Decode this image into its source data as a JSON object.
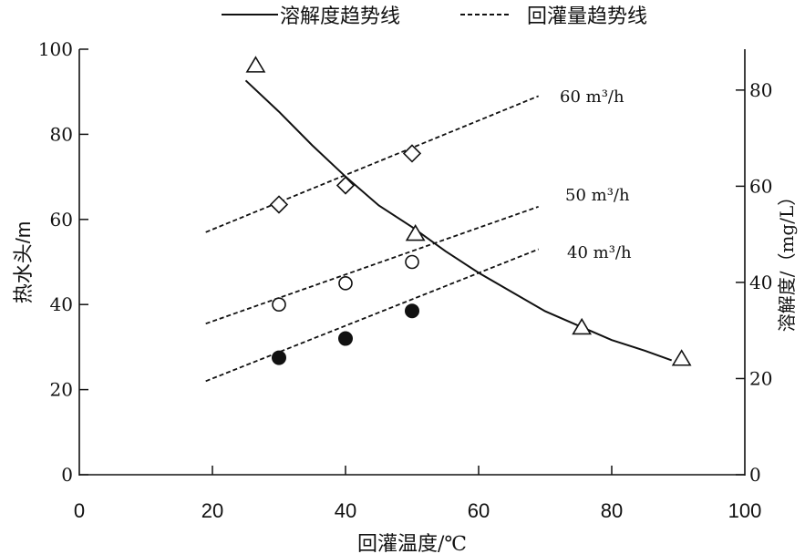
{
  "chart_data": {
    "type": "scatter",
    "title": "",
    "legend": {
      "placement": "top-center",
      "items": [
        {
          "label": "溶解度趋势线",
          "style": "solid"
        },
        {
          "label": "回灌量趋势线",
          "style": "dashed"
        }
      ]
    },
    "x_axis": {
      "label": "回灌温度/℃",
      "range": [
        0,
        100
      ],
      "ticks": [
        0,
        20,
        40,
        60,
        80,
        100
      ]
    },
    "y_left": {
      "label": "热水头/m",
      "range": [
        0,
        100
      ],
      "ticks": [
        0,
        20,
        40,
        60,
        80,
        100
      ]
    },
    "y_right": {
      "label": "溶解度/（mg/L）",
      "range": [
        0,
        88.5
      ],
      "ticks": [
        0,
        20,
        40,
        60,
        80
      ]
    },
    "grid": false,
    "series": [
      {
        "name": "60 m³/h",
        "axis": "left",
        "marker": "diamond",
        "points": [
          [
            30,
            63.5
          ],
          [
            40,
            68
          ],
          [
            50,
            75.5
          ]
        ],
        "trend": {
          "style": "dashed",
          "from": [
            19,
            57
          ],
          "to": [
            69,
            89
          ]
        }
      },
      {
        "name": "50 m³/h",
        "axis": "left",
        "marker": "circle-open",
        "points": [
          [
            30,
            40
          ],
          [
            40,
            45
          ],
          [
            50,
            50
          ]
        ],
        "trend": {
          "style": "dashed",
          "from": [
            19,
            35.5
          ],
          "to": [
            69,
            63
          ]
        }
      },
      {
        "name": "40 m³/h",
        "axis": "left",
        "marker": "circle-filled",
        "points": [
          [
            30,
            27.5
          ],
          [
            40,
            32
          ],
          [
            50,
            38.5
          ]
        ],
        "trend": {
          "style": "dashed",
          "from": [
            19,
            22
          ],
          "to": [
            69,
            53
          ]
        }
      },
      {
        "name": "溶解度",
        "axis": "right",
        "marker": "triangle-open",
        "points": [
          [
            26.5,
            85
          ],
          [
            50.5,
            50
          ],
          [
            75.5,
            30.5
          ],
          [
            90.5,
            24
          ]
        ],
        "trend": {
          "style": "solid",
          "points": [
            [
              25,
              82
            ],
            [
              30,
              75.5
            ],
            [
              35,
              68.5
            ],
            [
              40,
              62
            ],
            [
              45,
              56
            ],
            [
              50,
              51.5
            ],
            [
              55,
              46.5
            ],
            [
              60,
              42
            ],
            [
              65,
              38
            ],
            [
              70,
              34
            ],
            [
              75,
              31
            ],
            [
              80,
              28
            ],
            [
              85,
              25.8
            ],
            [
              89,
              23.8
            ]
          ]
        }
      }
    ]
  },
  "colors": {
    "ink": "#111111",
    "background": "#ffffff"
  }
}
